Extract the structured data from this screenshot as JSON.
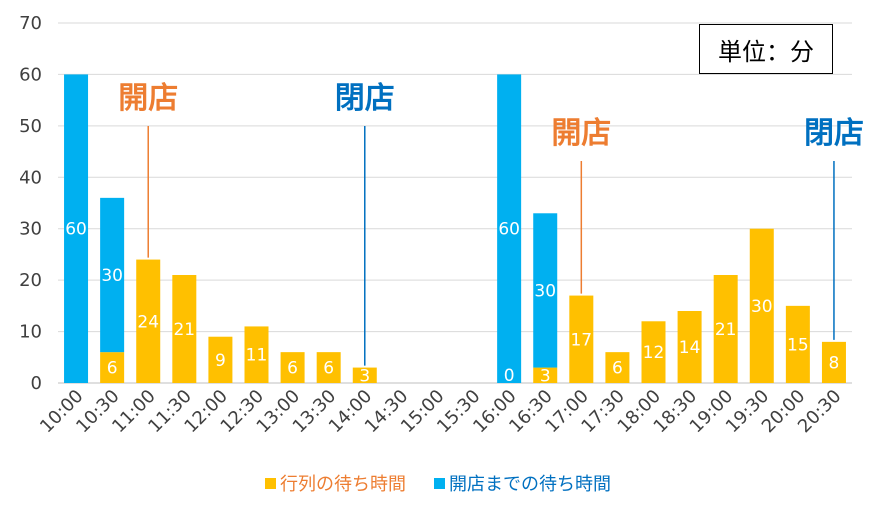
{
  "chart_data": {
    "type": "bar",
    "stacked": true,
    "categories": [
      "10:00",
      "10:30",
      "11:00",
      "11:30",
      "12:00",
      "12:30",
      "13:00",
      "13:30",
      "14:00",
      "14:30",
      "15:00",
      "15:30",
      "16:00",
      "16:30",
      "17:00",
      "17:30",
      "18:00",
      "18:30",
      "19:00",
      "19:30",
      "20:00",
      "20:30"
    ],
    "series": [
      {
        "name": "行列の待ち時間",
        "color": "#FFC000",
        "values": [
          0,
          6,
          24,
          21,
          9,
          11,
          6,
          6,
          3,
          0,
          0,
          0,
          0,
          3,
          17,
          6,
          12,
          14,
          21,
          30,
          15,
          8
        ]
      },
      {
        "name": "開店までの待ち時間",
        "color": "#00B0F0",
        "values": [
          60,
          30,
          0,
          0,
          0,
          0,
          0,
          0,
          0,
          0,
          0,
          0,
          60,
          30,
          0,
          0,
          0,
          0,
          0,
          0,
          0,
          0
        ]
      }
    ],
    "bottom_zero_labels": [
      "0",
      "0",
      "0",
      "0"
    ],
    "ylim": [
      0,
      70
    ],
    "yticks": [
      "0",
      "10",
      "20",
      "30",
      "40",
      "50",
      "60",
      "70"
    ],
    "grid": true,
    "legend_position": "bottom",
    "unit_label": "単位：分",
    "annotations": [
      {
        "text": "開店",
        "category": "11:00",
        "value": 24,
        "color": "#ED7D31"
      },
      {
        "text": "閉店",
        "category": "14:00",
        "value": 3,
        "color": "#0070C0"
      },
      {
        "text": "開店",
        "category": "17:00",
        "value": 17,
        "color": "#ED7D31"
      },
      {
        "text": "閉店",
        "category": "20:30",
        "value": 8,
        "color": "#0070C0"
      }
    ]
  }
}
